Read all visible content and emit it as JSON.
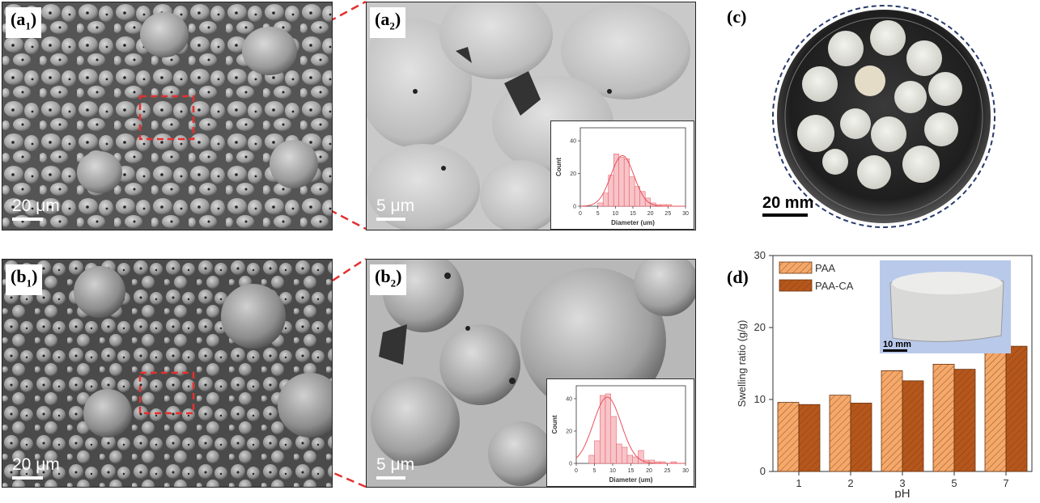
{
  "panels": {
    "a1": {
      "tag": "(a",
      "sub": "1",
      "close": ")",
      "scale": "20 μm"
    },
    "a2": {
      "tag": "(a",
      "sub": "2",
      "close": ")",
      "scale": "5 μm"
    },
    "b1": {
      "tag": "(b",
      "sub": "1",
      "close": ")",
      "scale": "20 μm"
    },
    "b2": {
      "tag": "(b",
      "sub": "2",
      "close": ")",
      "scale": "5 μm"
    },
    "c": {
      "tag": "(c)",
      "scale": "20 mm"
    },
    "d": {
      "tag": "(d)",
      "inset_scale": "10 mm"
    }
  },
  "colors": {
    "zoom_line": "#e53030",
    "hist_fill": "#f7c4c8",
    "hist_curve": "#e8505b",
    "paa": "#f4a86a",
    "paa_ca": "#b5571c"
  },
  "chart_data": [
    {
      "type": "bar",
      "panel": "a2-inset",
      "xlabel": "Diameter (um)",
      "ylabel": "Count",
      "x_ticks": [
        0,
        5,
        10,
        15,
        20,
        25,
        30
      ],
      "y_ticks": [
        0,
        20,
        40
      ],
      "xlim": [
        0,
        30
      ],
      "ylim": [
        0,
        48
      ],
      "bin_width": 1.5,
      "bins": [
        [
          5,
          2
        ],
        [
          6.5,
          8
        ],
        [
          8,
          19
        ],
        [
          9.5,
          32
        ],
        [
          11,
          30
        ],
        [
          12.5,
          29
        ],
        [
          14,
          18
        ],
        [
          15.5,
          12
        ],
        [
          17,
          9
        ],
        [
          18.5,
          5
        ],
        [
          20,
          2
        ],
        [
          21.5,
          1
        ],
        [
          23,
          1
        ],
        [
          24.5,
          1
        ]
      ],
      "fit": {
        "type": "gaussian",
        "mean": 12,
        "sd": 3.3,
        "peak": 31
      }
    },
    {
      "type": "bar",
      "panel": "b2-inset",
      "xlabel": "Diameter (um)",
      "ylabel": "Count",
      "x_ticks": [
        0,
        5,
        10,
        15,
        20,
        25,
        30
      ],
      "y_ticks": [
        0,
        20,
        40
      ],
      "xlim": [
        0,
        30
      ],
      "ylim": [
        0,
        48
      ],
      "bin_width": 1.5,
      "bins": [
        [
          3.5,
          5
        ],
        [
          5,
          14
        ],
        [
          6.5,
          42
        ],
        [
          8,
          43
        ],
        [
          9.5,
          29
        ],
        [
          11,
          12
        ],
        [
          12.5,
          10
        ],
        [
          14,
          5
        ],
        [
          15.5,
          4
        ],
        [
          17,
          8
        ],
        [
          18.5,
          2
        ],
        [
          20,
          2
        ],
        [
          21.5,
          1
        ],
        [
          23,
          1
        ],
        [
          26,
          1
        ]
      ],
      "fit": {
        "type": "gaussian",
        "mean": 8.5,
        "sd": 3.8,
        "peak": 41
      }
    },
    {
      "type": "bar",
      "panel": "d",
      "categories": [
        "1",
        "2",
        "3",
        "5",
        "7"
      ],
      "series": [
        {
          "name": "PAA",
          "values": [
            9.6,
            10.6,
            14.0,
            14.9,
            17.5
          ]
        },
        {
          "name": "PAA-CA",
          "values": [
            9.3,
            9.5,
            12.6,
            14.2,
            17.4
          ]
        }
      ],
      "xlabel": "pH",
      "ylabel": "Swelling ratio (g/g)",
      "ylim": [
        0,
        30
      ],
      "y_ticks": [
        0,
        10,
        20,
        30
      ],
      "legend": "top-left"
    }
  ]
}
